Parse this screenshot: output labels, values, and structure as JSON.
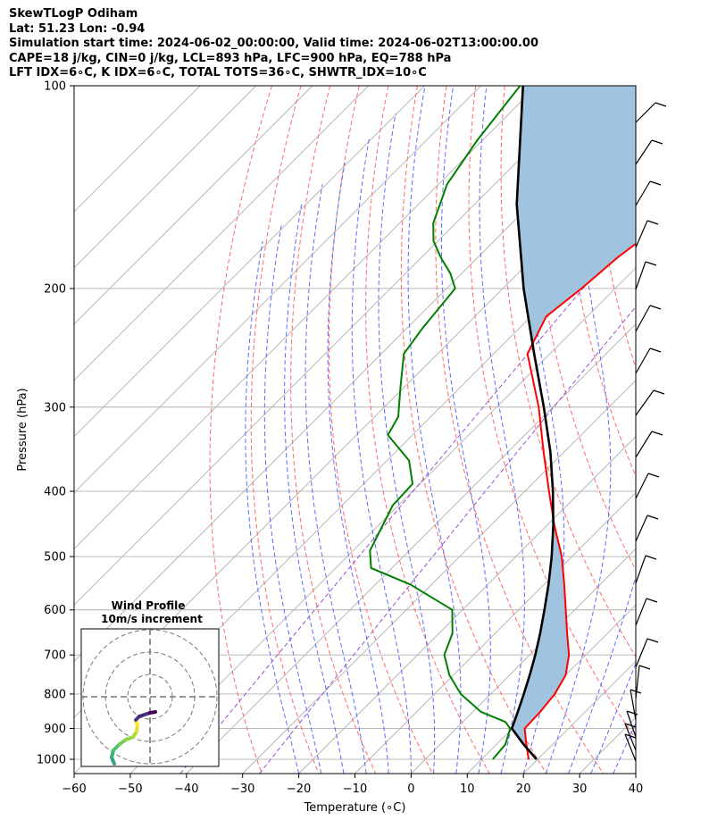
{
  "header": {
    "line1": "SkewTLogP Odiham",
    "line2": "Lat: 51.23   Lon: -0.94",
    "line3": "Simulation start time: 2024-06-02_00:00:00, Valid time: 2024-06-02T13:00:00.00",
    "line4": "CAPE=18 j/kg, CIN=0 j/kg, LCL=893 hPa, LFC=900 hPa, EQ=788 hPa",
    "line5": "LFT IDX=6∘C, K IDX=6∘C, TOTAL TOTS=36∘C, SHWTR_IDX=10∘C"
  },
  "chart_data": {
    "type": "line",
    "title": "SkewTLogP Odiham",
    "xlabel": "Temperature (∘C)",
    "ylabel": "Pressure (hPa)",
    "xlim": [
      -60,
      40
    ],
    "ylim": [
      1050,
      100
    ],
    "y_scale": "log",
    "x_ticks": [
      "−60",
      "−50",
      "−40",
      "−30",
      "−20",
      "−10",
      "0",
      "10",
      "20",
      "30",
      "40"
    ],
    "x_tick_values": [
      -60,
      -50,
      -40,
      -30,
      -20,
      -10,
      0,
      10,
      20,
      30,
      40
    ],
    "y_ticks": [
      "100",
      "200",
      "300",
      "400",
      "500",
      "600",
      "700",
      "800",
      "900",
      "1000"
    ],
    "y_tick_values": [
      100,
      200,
      300,
      400,
      500,
      600,
      700,
      800,
      900,
      1000
    ],
    "grid": true,
    "colors": {
      "temperature": "#ff0000",
      "dewpoint": "#008000",
      "parcel": "#000000",
      "cape_fill": "#a0c4df",
      "dry_adiabats": "#ff6a6a",
      "moist_adiabats": "#5b6bff",
      "mixing_ratio": "#9b4fd1",
      "isotherms": "#b0b0b0"
    },
    "series": [
      {
        "key": "temperature",
        "pressure": [
          1000,
          950,
          900,
          850,
          800,
          750,
          700,
          650,
          600,
          550,
          500,
          450,
          400,
          350,
          300,
          250,
          220,
          200,
          180,
          160,
          150,
          140,
          130,
          120,
          110,
          100
        ],
        "values": [
          18.4,
          15.3,
          12.2,
          12.0,
          11.4,
          10.0,
          7.0,
          2.8,
          -1.6,
          -6.4,
          -11.8,
          -18.6,
          -25.7,
          -33.6,
          -42.5,
          -54.0,
          -57.3,
          -56.0,
          -55.1,
          -53.1,
          -50.5,
          -49.5,
          -48.3,
          -48.0,
          -49.0,
          -50.0
        ]
      },
      {
        "key": "dewpoint",
        "pressure": [
          1000,
          950,
          900,
          880,
          850,
          800,
          750,
          700,
          650,
          600,
          550,
          520,
          490,
          450,
          420,
          390,
          360,
          330,
          310,
          280,
          250,
          230,
          200,
          190,
          180,
          170,
          160,
          140,
          120,
          100
        ],
        "values": [
          12.0,
          11.6,
          9.6,
          7.6,
          1.4,
          -5.3,
          -10.7,
          -15.2,
          -17.6,
          -21.8,
          -33.8,
          -43.7,
          -47.0,
          -49.2,
          -51.0,
          -51.3,
          -56.1,
          -64.4,
          -65.8,
          -70.7,
          -76.0,
          -77.2,
          -78.5,
          -82.0,
          -86.5,
          -90.8,
          -94.0,
          -98.5,
          -101.0,
          -103.0
        ]
      },
      {
        "key": "parcel",
        "pressure": [
          1000,
          950,
          900,
          850,
          800,
          750,
          700,
          650,
          600,
          550,
          500,
          450,
          400,
          350,
          300,
          250,
          200,
          150,
          100
        ],
        "values": [
          19.8,
          14.8,
          9.9,
          8.0,
          5.9,
          3.6,
          1.0,
          -2.0,
          -5.4,
          -9.2,
          -13.6,
          -18.8,
          -25.0,
          -32.4,
          -41.6,
          -52.8,
          -66.3,
          -82.5,
          -102.5
        ]
      }
    ],
    "hodograph": {
      "title": "Wind Profile",
      "subtitle": "10m/s increment"
    }
  }
}
